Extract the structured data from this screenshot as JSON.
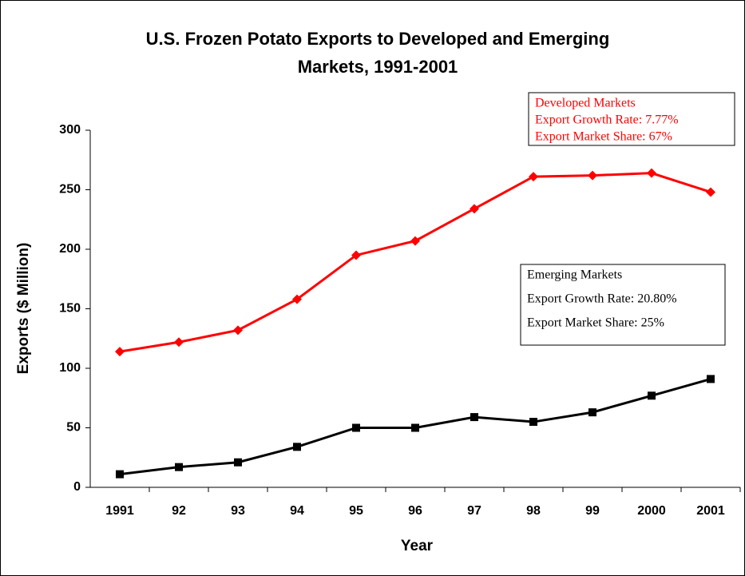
{
  "chart_data": {
    "type": "line",
    "title": [
      "U.S. Frozen Potato Exports to Developed and Emerging",
      "Markets, 1991-2001"
    ],
    "xlabel": "Year",
    "ylabel": "Exports ($ Million)",
    "categories": [
      "1991",
      "92",
      "93",
      "94",
      "95",
      "96",
      "97",
      "98",
      "99",
      "2000",
      "2001"
    ],
    "series": [
      {
        "name": "Developed Markets",
        "color": "#ff0000",
        "marker": "diamond",
        "values": [
          114,
          122,
          132,
          158,
          195,
          207,
          234,
          261,
          262,
          264,
          248
        ],
        "note": [
          "Export Growth Rate: 7.77%",
          "Export Market Share: 67%"
        ]
      },
      {
        "name": "Emerging Markets",
        "color": "#000000",
        "marker": "square",
        "values": [
          11,
          17,
          21,
          34,
          50,
          50,
          59,
          55,
          63,
          77,
          91
        ],
        "note": [
          "Export Growth Rate: 20.80%",
          "Export Market Share: 25%"
        ]
      }
    ],
    "ylim": [
      0,
      300
    ],
    "yticks": [
      0,
      50,
      100,
      150,
      200,
      250,
      300
    ],
    "grid": false
  }
}
